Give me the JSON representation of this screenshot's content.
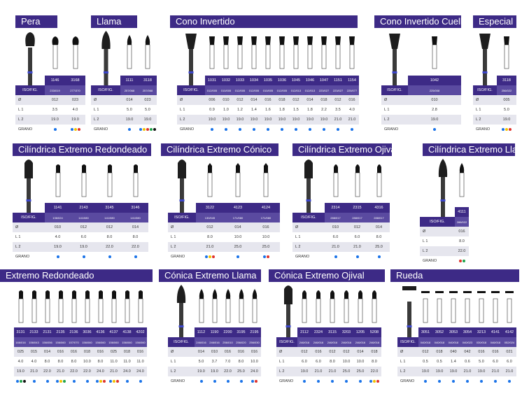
{
  "colors": {
    "header": "#3d2a86",
    "subheader": "#5a4aa0",
    "blue": "#1a73e8",
    "yellow": "#f2c300",
    "red": "#e0322b",
    "green": "#1fa34a",
    "black": "#111111"
  },
  "panels": [
    {
      "title": "Pera",
      "codes": [
        "1146",
        "3168"
      ],
      "iso": [
        "233/019",
        "277/370"
      ],
      "rows": [
        [
          "Ø",
          "012",
          "023"
        ],
        [
          "L 1",
          "3.5",
          "4.0"
        ],
        [
          "L 2",
          "19.0",
          "19.0"
        ]
      ],
      "grano": [
        [
          "blue"
        ],
        [
          "blue",
          "yellow",
          "red"
        ]
      ]
    },
    {
      "title": "Llama",
      "codes": [
        "1111",
        "3118"
      ],
      "iso": [
        "257/068",
        "257/068"
      ],
      "rows": [
        [
          "Ø",
          "014",
          "023"
        ],
        [
          "L 1",
          "5.0",
          "5.0"
        ],
        [
          "L 2",
          "19.0",
          "19.0"
        ]
      ],
      "grano": [
        [
          "blue"
        ],
        [
          "blue",
          "yellow",
          "red",
          "green",
          "black"
        ]
      ]
    },
    {
      "title": "Cono Invertido",
      "codes": [
        "1031",
        "1032",
        "1033",
        "1034",
        "1035",
        "1036",
        "1045",
        "1046",
        "1047",
        "1151",
        "1154"
      ],
      "iso": [
        "012/005",
        "010/005",
        "012/005",
        "012/005",
        "010/005",
        "012/005",
        "012/013",
        "012/013",
        "223/027",
        "223/027",
        "225/077"
      ],
      "rows": [
        [
          "Ø",
          "006",
          "010",
          "012",
          "014",
          "016",
          "018",
          "012",
          "014",
          "018",
          "012",
          "016"
        ],
        [
          "L 1",
          "0.9",
          "1.0",
          "1.2",
          "1.4",
          "1.6",
          "1.8",
          "1.5",
          "1.8",
          "2.2",
          "3.5",
          "4.0"
        ],
        [
          "L 2",
          "19.0",
          "19.0",
          "19.0",
          "19.0",
          "19.0",
          "19.0",
          "19.0",
          "19.0",
          "19.0",
          "21.0",
          "21.0"
        ]
      ],
      "grano": [
        [
          "blue"
        ],
        [
          "blue"
        ],
        [
          "blue"
        ],
        [
          "blue"
        ],
        [
          "blue"
        ],
        [
          "blue"
        ],
        [
          "blue"
        ],
        [
          "blue"
        ],
        [
          "blue"
        ],
        [
          "blue"
        ],
        [
          "blue"
        ]
      ]
    },
    {
      "title": "Cono Invertido Cuello",
      "codes": [
        "1042"
      ],
      "iso": [
        "225/008"
      ],
      "rows": [
        [
          "Ø",
          "010"
        ],
        [
          "L 1",
          "2.8"
        ],
        [
          "L 2",
          "19.0"
        ]
      ],
      "grano": [
        [
          "blue"
        ]
      ]
    },
    {
      "title": "Especial",
      "codes": [
        "3118"
      ],
      "iso": [
        "256/022"
      ],
      "rows": [
        [
          "Ø",
          "005"
        ],
        [
          "L 1",
          "5.0"
        ],
        [
          "L 2",
          "19.0"
        ]
      ],
      "grano": [
        [
          "blue",
          "yellow",
          "red"
        ]
      ]
    },
    {
      "title": "Cilíndrica Extremo Redondeado",
      "codes": [
        "1141",
        "2143",
        "3145",
        "3146"
      ],
      "iso": [
        "136/024",
        "141/080",
        "141/080",
        "141/080"
      ],
      "rows": [
        [
          "Ø",
          "010",
          "012",
          "012",
          "014"
        ],
        [
          "L 1",
          "4.0",
          "6.0",
          "8.0",
          "8.0"
        ],
        [
          "L 2",
          "19.0",
          "19.0",
          "22.0",
          "22.0"
        ]
      ],
      "grano": [
        [
          "blue"
        ],
        [
          "blue"
        ],
        [
          "blue"
        ],
        [
          "blue"
        ]
      ]
    },
    {
      "title": "Cilíndrica Extremo Cónico",
      "codes": [
        "3122",
        "4123",
        "4124"
      ],
      "iso": [
        "130/045",
        "171/080",
        "171/080"
      ],
      "rows": [
        [
          "Ø",
          "012",
          "014",
          "016"
        ],
        [
          "L 1",
          "8.0",
          "10.0",
          "10.0"
        ],
        [
          "L 2",
          "21.0",
          "25.0",
          "25.0"
        ]
      ],
      "grano": [
        [
          "blue",
          "yellow",
          "red"
        ],
        [
          "blue"
        ],
        [
          "blue",
          "red"
        ]
      ]
    },
    {
      "title": "Cilíndrica Extremo Ojival",
      "codes": [
        "2314",
        "2315",
        "4316"
      ],
      "iso": [
        "288/017",
        "288/017",
        "288/017"
      ],
      "rows": [
        [
          "Ø",
          "010",
          "012",
          "014"
        ],
        [
          "L 1",
          "6.0",
          "6.0",
          "8.0"
        ],
        [
          "L 2",
          "21.0",
          "21.0",
          "25.0"
        ]
      ],
      "grano": [
        [
          "blue"
        ],
        [
          "blue"
        ],
        [
          "blue"
        ]
      ]
    },
    {
      "title": "Cilíndrica Extremo Llama",
      "codes": [
        "4111"
      ],
      "iso": [
        "288/022"
      ],
      "rows": [
        [
          "Ø",
          "016"
        ],
        [
          "L 1",
          "8.0"
        ],
        [
          "L 2",
          "22.0"
        ]
      ],
      "grano": [
        [
          "red",
          "green"
        ]
      ]
    },
    {
      "title": "Extremo Redondeado",
      "codes": [
        "3131",
        "2133",
        "2131",
        "2135",
        "2136",
        "3036",
        "4136",
        "4137",
        "4138",
        "4202"
      ],
      "iso": [
        "166/016",
        "156/043",
        "156/056",
        "156/060",
        "157/070",
        "156/060",
        "156/060",
        "156/060",
        "156/060",
        "156/060"
      ],
      "rows": [
        [
          "025",
          "015",
          "014",
          "016",
          "016",
          "018",
          "016",
          "025",
          "018",
          "016"
        ],
        [
          "4.0",
          "4.0",
          "8.0",
          "8.0",
          "8.0",
          "10.0",
          "8.0",
          "11.0",
          "11.0",
          "11.0"
        ],
        [
          "19.0",
          "21.0",
          "22.0",
          "21.0",
          "22.0",
          "22.0",
          "24.0",
          "21.0",
          "24.0",
          "24.0"
        ]
      ],
      "grano": [
        [
          "blue",
          "green",
          "black"
        ],
        [
          "blue"
        ],
        [
          "blue"
        ],
        [
          "blue",
          "yellow",
          "green"
        ],
        [
          "blue"
        ],
        [
          "blue"
        ],
        [
          "blue",
          "yellow",
          "red"
        ],
        [
          "blue",
          "yellow",
          "red"
        ],
        [
          "blue"
        ],
        [
          "blue"
        ]
      ]
    },
    {
      "title": "Cónica Extremo Llama",
      "codes": [
        "1112",
        "1190",
        "2200",
        "3195",
        "2195"
      ],
      "iso": [
        "246/016",
        "246/016",
        "256/010",
        "256/020",
        "256/030"
      ],
      "rows": [
        [
          "Ø",
          "014",
          "010",
          "016",
          "016",
          "016"
        ],
        [
          "L 1",
          "5.0",
          "3.7",
          "7.0",
          "8.0",
          "10.0"
        ],
        [
          "L 2",
          "19.0",
          "19.0",
          "22.0",
          "25.0",
          "24.0"
        ]
      ],
      "grano": [
        [
          "blue"
        ],
        [
          "blue"
        ],
        [
          "blue"
        ],
        [
          "blue"
        ],
        [
          "blue",
          "red"
        ]
      ]
    },
    {
      "title": "Cónica Extremo Ojival",
      "codes": [
        "2112",
        "2324",
        "3115",
        "3203",
        "1205",
        "5208"
      ],
      "iso": [
        "246/016",
        "246/016",
        "246/016",
        "246/016",
        "246/016",
        "246/016"
      ],
      "rows": [
        [
          "Ø",
          "012",
          "016",
          "012",
          "012",
          "014",
          "018"
        ],
        [
          "L 1",
          "6.0",
          "6.0",
          "8.0",
          "10.0",
          "10.0",
          "8.0"
        ],
        [
          "L 2",
          "19.0",
          "21.0",
          "21.0",
          "25.0",
          "25.0",
          "22.0"
        ]
      ],
      "grano": [
        [
          "blue"
        ],
        [
          "blue"
        ],
        [
          "blue"
        ],
        [
          "blue"
        ],
        [
          "blue"
        ],
        [
          "blue",
          "yellow",
          "red"
        ]
      ]
    },
    {
      "title": "Rueda",
      "codes": [
        "3051",
        "3052",
        "3053",
        "3054",
        "3213",
        "4141",
        "4142"
      ],
      "iso": [
        "040/018",
        "040/018",
        "040/018",
        "040/023",
        "030/018",
        "046/018",
        "052/024"
      ],
      "rows": [
        [
          "Ø",
          "012",
          "018",
          "040",
          "042",
          "016",
          "016",
          "021"
        ],
        [
          "L 1",
          "0.5",
          "0.5",
          "1.4",
          "0.6",
          "5.0",
          "6.0",
          "6.0"
        ],
        [
          "L 2",
          "19.0",
          "19.0",
          "19.0",
          "21.0",
          "19.0",
          "21.0",
          "21.0"
        ]
      ],
      "grano": [
        [
          "blue"
        ],
        [
          "blue"
        ],
        [
          "blue"
        ],
        [
          "blue"
        ],
        [
          "blue"
        ],
        [
          "blue"
        ],
        [
          "blue"
        ]
      ]
    }
  ],
  "labels": {
    "iso": "ISO/FIG.",
    "grano": "GRANO"
  }
}
